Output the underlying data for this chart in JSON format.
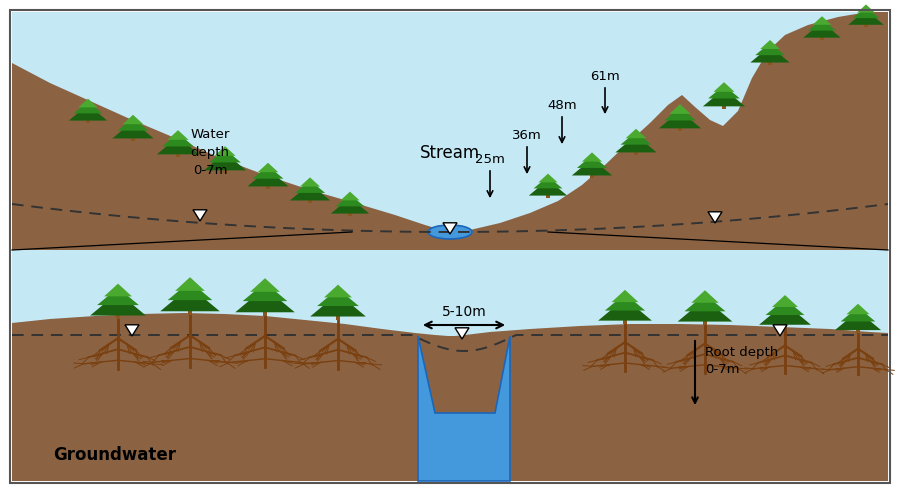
{
  "bg_color": "#ffffff",
  "border_color": "#555555",
  "water_light": "#c5e8f5",
  "deep_water_color": "#4499dd",
  "ground_color": "#8B6343",
  "tree_green_dark": "#1a6010",
  "tree_green_mid": "#2d8a1f",
  "tree_green_light": "#4aaa30",
  "root_color": "#7a4010",
  "trunk_color": "#8B5520",
  "dashed_color": "#333333",
  "text_color": "#111111",
  "stream_label": "Stream",
  "groundwater_label": "Groundwater",
  "water_depth_label": "Water\ndepth\n0-7m",
  "root_depth_label": "Root depth\n0-7m",
  "width_label": "5-10m",
  "depth_labels": [
    "25m",
    "36m",
    "48m",
    "61m"
  ]
}
